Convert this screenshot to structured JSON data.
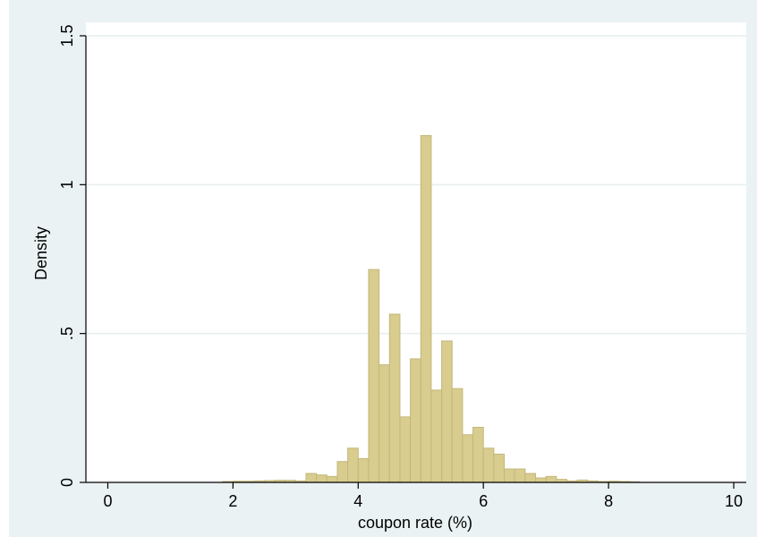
{
  "chart_data": {
    "type": "bar",
    "title": "",
    "xlabel": "coupon rate (%)",
    "ylabel": "Density",
    "xlim": [
      -0.35,
      10.2
    ],
    "ylim": [
      0,
      1.5
    ],
    "xticks": [
      0,
      2,
      4,
      6,
      8,
      10
    ],
    "xtick_labels": [
      "0",
      "2",
      "4",
      "6",
      "8",
      "10"
    ],
    "yticks": [
      0,
      0.5,
      1,
      1.5
    ],
    "ytick_labels": [
      "0",
      ".5",
      "1",
      "1.5"
    ],
    "grid": true,
    "bin_width": 0.1667,
    "bin_start": 1.833,
    "values": [
      0.003,
      0.004,
      0.004,
      0.005,
      0.006,
      0.007,
      0.007,
      0.005,
      0.03,
      0.025,
      0.02,
      0.07,
      0.115,
      0.08,
      0.715,
      0.395,
      0.565,
      0.22,
      0.415,
      1.165,
      0.31,
      0.475,
      0.315,
      0.16,
      0.185,
      0.115,
      0.095,
      0.045,
      0.045,
      0.03,
      0.015,
      0.02,
      0.01,
      0.005,
      0.008,
      0.005,
      0.003,
      0.004,
      0.003,
      0.002
    ],
    "colors": {
      "bar_fill": "#d8cc8e",
      "bar_stroke": "#c3b77a",
      "outer_background": "#eaf2f3",
      "plot_background": "#ffffff",
      "grid": "#e6eeee"
    }
  }
}
